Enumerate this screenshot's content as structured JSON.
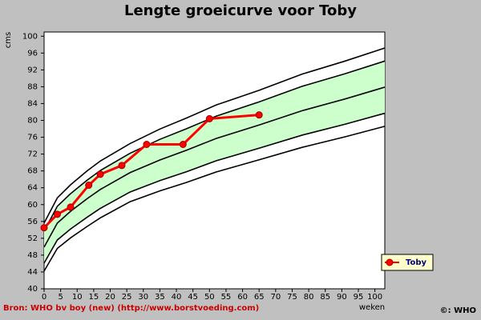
{
  "chart_data": {
    "type": "line",
    "title": "Lengte groeicurve voor Toby",
    "xlabel": "weken",
    "ylabel": "cms",
    "source": "Bron: WHO bv boy (new) (http://www.borstvoeding.com)",
    "copyright": "©: WHO",
    "x": [
      0,
      4,
      8,
      13.5,
      17,
      23.5,
      31,
      42,
      50,
      65
    ],
    "series": [
      {
        "name": "Toby",
        "color": "#ff0000",
        "values": [
          54.5,
          57.7,
          59.4,
          64.6,
          67.2,
          69.3,
          74.3,
          74.3,
          80.4,
          81.3
        ]
      }
    ],
    "reference_curves": {
      "color": "#000000",
      "band_color": "#ccffcc",
      "x": [
        0,
        4,
        8,
        13,
        17,
        26,
        35,
        43,
        52,
        65,
        78,
        91,
        103
      ],
      "lines": [
        [
          44.2,
          49.6,
          52.1,
          54.8,
          56.85,
          60.7,
          63.25,
          65.25,
          67.75,
          70.65,
          73.6,
          76.1,
          78.6
        ],
        [
          46.1,
          51.6,
          54.2,
          57.0,
          59.1,
          63.0,
          65.7,
          67.8,
          70.4,
          73.4,
          76.5,
          79.1,
          81.7
        ],
        [
          49.9,
          55.6,
          58.4,
          61.4,
          63.6,
          67.6,
          70.6,
          72.9,
          75.7,
          78.9,
          82.3,
          85.1,
          87.9
        ],
        [
          53.7,
          59.6,
          62.6,
          65.8,
          68.1,
          72.2,
          75.5,
          78.0,
          81.0,
          84.4,
          88.1,
          91.1,
          94.1
        ],
        [
          55.6,
          61.6,
          64.7,
          68.0,
          70.35,
          74.5,
          77.95,
          80.55,
          83.65,
          87.15,
          91.0,
          94.1,
          97.2
        ]
      ]
    },
    "xlim": [
      0,
      103
    ],
    "ylim": [
      40,
      101
    ],
    "xticks": [
      0,
      5,
      10,
      15,
      20,
      25,
      30,
      35,
      40,
      45,
      50,
      55,
      60,
      65,
      70,
      75,
      80,
      85,
      90,
      95,
      100
    ],
    "yticks": [
      40,
      44,
      48,
      52,
      56,
      60,
      64,
      68,
      72,
      76,
      80,
      84,
      88,
      92,
      96,
      100
    ],
    "legend": "right"
  }
}
